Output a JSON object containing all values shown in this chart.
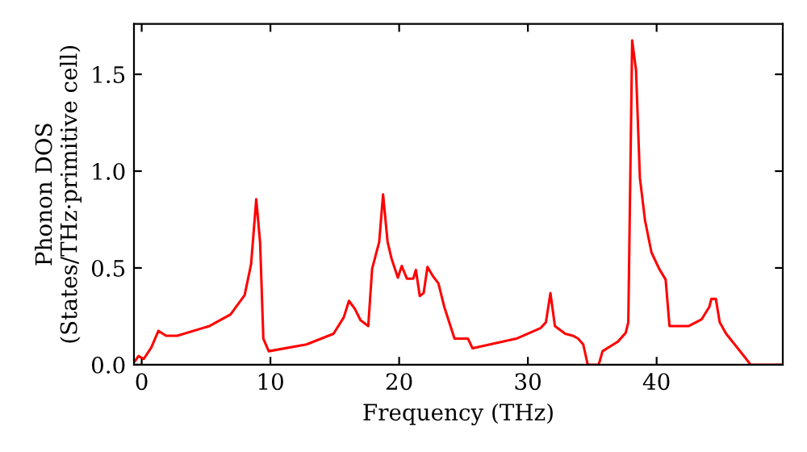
{
  "chart_data": {
    "type": "line",
    "xlabel": "Frequency (THz)",
    "ylabel": "Phonon DOS\n(States/THz·primitive cell)",
    "xlim": [
      -0.6,
      49.8
    ],
    "ylim": [
      0,
      1.76
    ],
    "xticks": [
      0,
      10,
      20,
      30,
      40
    ],
    "yticks": [
      {
        "value": 0,
        "label": "0.0"
      },
      {
        "value": 0.5,
        "label": "0.5"
      },
      {
        "value": 1.0,
        "label": "1.0"
      },
      {
        "value": 1.5,
        "label": "1.5"
      }
    ],
    "grid": false,
    "legend": false,
    "marker": "none",
    "line_style": "solid",
    "series": [
      {
        "color": "#ff0000",
        "x": [
          -0.5,
          -0.25,
          0.16,
          0.75,
          1.3,
          1.9,
          2.76,
          5.27,
          6.9,
          8.0,
          8.5,
          8.9,
          9.2,
          9.45,
          9.87,
          12.8,
          14.9,
          15.7,
          16.1,
          16.55,
          17.0,
          17.6,
          17.9,
          18.45,
          18.75,
          19.1,
          19.4,
          19.9,
          20.2,
          20.6,
          21.1,
          21.3,
          21.6,
          21.9,
          22.2,
          22.6,
          23.05,
          23.5,
          24.3,
          25.35,
          25.7,
          29.1,
          31.0,
          31.4,
          31.75,
          32.1,
          32.9,
          33.5,
          33.9,
          34.3,
          34.65,
          35.5,
          35.8,
          37.0,
          37.6,
          37.8,
          38.1,
          38.4,
          38.7,
          39.1,
          39.6,
          40.2,
          40.7,
          41.0,
          42.5,
          43.5,
          44.1,
          44.25,
          44.6,
          44.9,
          45.4,
          46.9,
          47.3,
          49.8
        ],
        "values": [
          0.02,
          0.045,
          0.03,
          0.09,
          0.175,
          0.15,
          0.15,
          0.2,
          0.26,
          0.36,
          0.52,
          0.855,
          0.63,
          0.135,
          0.07,
          0.105,
          0.16,
          0.245,
          0.33,
          0.29,
          0.23,
          0.2,
          0.495,
          0.635,
          0.88,
          0.635,
          0.55,
          0.45,
          0.51,
          0.445,
          0.445,
          0.49,
          0.355,
          0.37,
          0.505,
          0.46,
          0.42,
          0.3,
          0.135,
          0.135,
          0.085,
          0.135,
          0.19,
          0.22,
          0.37,
          0.2,
          0.16,
          0.15,
          0.135,
          0.105,
          0,
          0,
          0.07,
          0.12,
          0.165,
          0.22,
          1.675,
          1.52,
          0.965,
          0.745,
          0.58,
          0.495,
          0.44,
          0.2,
          0.2,
          0.235,
          0.3,
          0.34,
          0.34,
          0.22,
          0.16,
          0.035,
          0,
          0
        ]
      }
    ]
  }
}
